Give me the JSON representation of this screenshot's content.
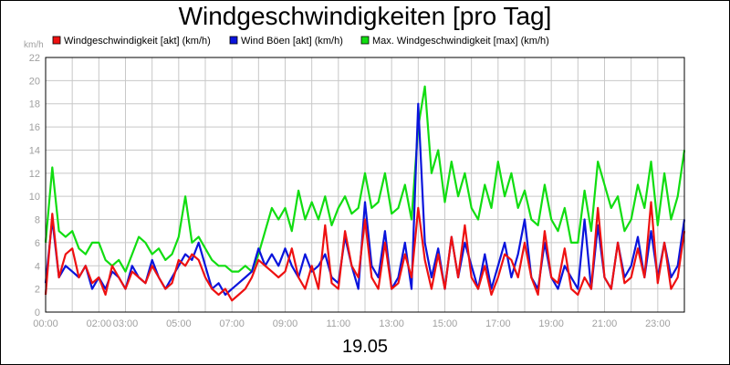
{
  "chart_data": {
    "type": "line",
    "title": "Windgeschwindigkeiten [pro Tag]",
    "ylabel": "km/h",
    "xlabel": "19.05",
    "ylim": [
      0,
      22
    ],
    "xlim": [
      0,
      1440
    ],
    "grid": true,
    "legend_position": "top",
    "y_ticks": [
      "0",
      "2",
      "4",
      "6",
      "8",
      "10",
      "12",
      "14",
      "16",
      "18",
      "20",
      "22"
    ],
    "x_ticks": [
      {
        "label": "00:00",
        "x": 0
      },
      {
        "label": "02:00",
        "x": 120
      },
      {
        "label": "03:00",
        "x": 180
      },
      {
        "label": "05:00",
        "x": 300
      },
      {
        "label": "07:00",
        "x": 420
      },
      {
        "label": "09:00",
        "x": 540
      },
      {
        "label": "11:00",
        "x": 660
      },
      {
        "label": "13:00",
        "x": 780
      },
      {
        "label": "15:00",
        "x": 900
      },
      {
        "label": "17:00",
        "x": 1020
      },
      {
        "label": "19:00",
        "x": 1140
      },
      {
        "label": "21:00",
        "x": 1260
      },
      {
        "label": "23:00",
        "x": 1380
      }
    ],
    "series": [
      {
        "name": "Windgeschwindigkeit [akt] (km/h)",
        "color": "#ee1111",
        "x": [
          0,
          15,
          30,
          45,
          60,
          75,
          90,
          105,
          120,
          135,
          150,
          165,
          180,
          195,
          210,
          225,
          240,
          255,
          270,
          285,
          300,
          315,
          330,
          345,
          360,
          375,
          390,
          405,
          420,
          435,
          450,
          465,
          480,
          495,
          510,
          525,
          540,
          555,
          570,
          585,
          600,
          615,
          630,
          645,
          660,
          675,
          690,
          705,
          720,
          735,
          750,
          765,
          780,
          795,
          810,
          825,
          840,
          855,
          870,
          885,
          900,
          915,
          930,
          945,
          960,
          975,
          990,
          1005,
          1020,
          1035,
          1050,
          1065,
          1080,
          1095,
          1110,
          1125,
          1140,
          1155,
          1170,
          1185,
          1200,
          1215,
          1230,
          1245,
          1260,
          1275,
          1290,
          1305,
          1320,
          1335,
          1350,
          1365,
          1380,
          1395,
          1410,
          1425,
          1440
        ],
        "y": [
          1.5,
          8.5,
          3,
          5,
          5.5,
          3,
          4,
          2.5,
          3,
          1.5,
          4,
          3,
          2,
          3.5,
          3,
          2.5,
          4,
          3,
          2,
          2.5,
          4.5,
          4,
          5,
          4.5,
          3,
          2,
          1.5,
          2,
          1,
          1.5,
          2,
          3,
          4.5,
          4,
          3.5,
          3,
          3.5,
          5.5,
          3,
          2,
          4,
          2,
          7.5,
          2.5,
          2,
          7,
          4,
          3,
          8,
          3,
          2,
          6,
          2,
          2.5,
          5,
          3,
          9,
          4.5,
          2,
          5,
          2,
          6.5,
          3,
          7.5,
          3,
          2,
          4,
          1.5,
          3,
          5,
          4.5,
          3,
          6,
          3,
          1.5,
          7,
          3,
          2.5,
          5.5,
          2,
          1.5,
          3,
          2,
          9,
          3,
          2,
          6,
          2.5,
          3,
          5.5,
          3,
          9.5,
          2.5,
          6,
          2,
          3,
          7
        ]
      },
      {
        "name": "Wind Böen [akt] (km/h)",
        "color": "#0a14dc",
        "x": [
          0,
          15,
          30,
          45,
          60,
          75,
          90,
          105,
          120,
          135,
          150,
          165,
          180,
          195,
          210,
          225,
          240,
          255,
          270,
          285,
          300,
          315,
          330,
          345,
          360,
          375,
          390,
          405,
          420,
          435,
          450,
          465,
          480,
          495,
          510,
          525,
          540,
          555,
          570,
          585,
          600,
          615,
          630,
          645,
          660,
          675,
          690,
          705,
          720,
          735,
          750,
          765,
          780,
          795,
          810,
          825,
          840,
          855,
          870,
          885,
          900,
          915,
          930,
          945,
          960,
          975,
          990,
          1005,
          1020,
          1035,
          1050,
          1065,
          1080,
          1095,
          1110,
          1125,
          1140,
          1155,
          1170,
          1185,
          1200,
          1215,
          1230,
          1245,
          1260,
          1275,
          1290,
          1305,
          1320,
          1335,
          1350,
          1365,
          1380,
          1395,
          1410,
          1425,
          1440
        ],
        "y": [
          2.5,
          8,
          3,
          4,
          3.5,
          3,
          4,
          2,
          3,
          2,
          3.5,
          3,
          2,
          4,
          3,
          2.5,
          4.5,
          3,
          2,
          3,
          4,
          5,
          4.5,
          6,
          4,
          2,
          2.5,
          1.5,
          2,
          2.5,
          3,
          3.5,
          5.5,
          4,
          5,
          4,
          5.5,
          4,
          3,
          5,
          3.5,
          4,
          5,
          3,
          2.5,
          6.5,
          4,
          2,
          9.5,
          4,
          3,
          7,
          2,
          3,
          6,
          2,
          18,
          6,
          3,
          5.5,
          2,
          6.5,
          3,
          6,
          4,
          2,
          5,
          2,
          4,
          6,
          3,
          5,
          8,
          3,
          2,
          6,
          3,
          2,
          4,
          3,
          2,
          8,
          2,
          7.5,
          3,
          2,
          6,
          3,
          4,
          6.5,
          3,
          7,
          3,
          6,
          3,
          4,
          8
        ]
      },
      {
        "name": "Max. Windgeschwindigkeit [max] (km/h)",
        "color": "#11dd11",
        "x": [
          0,
          15,
          30,
          45,
          60,
          75,
          90,
          105,
          120,
          135,
          150,
          165,
          180,
          195,
          210,
          225,
          240,
          255,
          270,
          285,
          300,
          315,
          330,
          345,
          360,
          375,
          390,
          405,
          420,
          435,
          450,
          465,
          480,
          495,
          510,
          525,
          540,
          555,
          570,
          585,
          600,
          615,
          630,
          645,
          660,
          675,
          690,
          705,
          720,
          735,
          750,
          765,
          780,
          795,
          810,
          825,
          840,
          855,
          870,
          885,
          900,
          915,
          930,
          945,
          960,
          975,
          990,
          1005,
          1020,
          1035,
          1050,
          1065,
          1080,
          1095,
          1110,
          1125,
          1140,
          1155,
          1170,
          1185,
          1200,
          1215,
          1230,
          1245,
          1260,
          1275,
          1290,
          1305,
          1320,
          1335,
          1350,
          1365,
          1380,
          1395,
          1410,
          1425,
          1440
        ],
        "y": [
          6,
          12.5,
          7,
          6.5,
          7,
          5.5,
          5,
          6,
          6,
          4.5,
          4,
          4.5,
          3.5,
          5,
          6.5,
          6,
          5,
          5.5,
          4.5,
          5,
          6.5,
          10,
          6,
          6.5,
          5.5,
          4.5,
          4,
          4,
          3.5,
          3.5,
          4,
          3.5,
          5,
          7,
          9,
          8,
          9,
          7,
          10.5,
          8,
          9.5,
          8,
          10,
          7.5,
          9,
          10,
          8.5,
          9,
          12,
          9,
          9.5,
          12,
          8.5,
          9,
          11,
          8,
          16,
          19.5,
          12,
          14,
          9.5,
          13,
          10,
          12,
          9,
          8,
          11,
          9,
          13,
          10,
          12,
          9,
          10.5,
          8,
          7.5,
          11,
          8,
          7,
          9,
          6,
          6,
          10.5,
          7,
          13,
          11,
          9,
          10,
          7,
          8,
          11,
          9,
          13,
          7.5,
          12,
          8,
          10,
          14
        ]
      }
    ]
  }
}
